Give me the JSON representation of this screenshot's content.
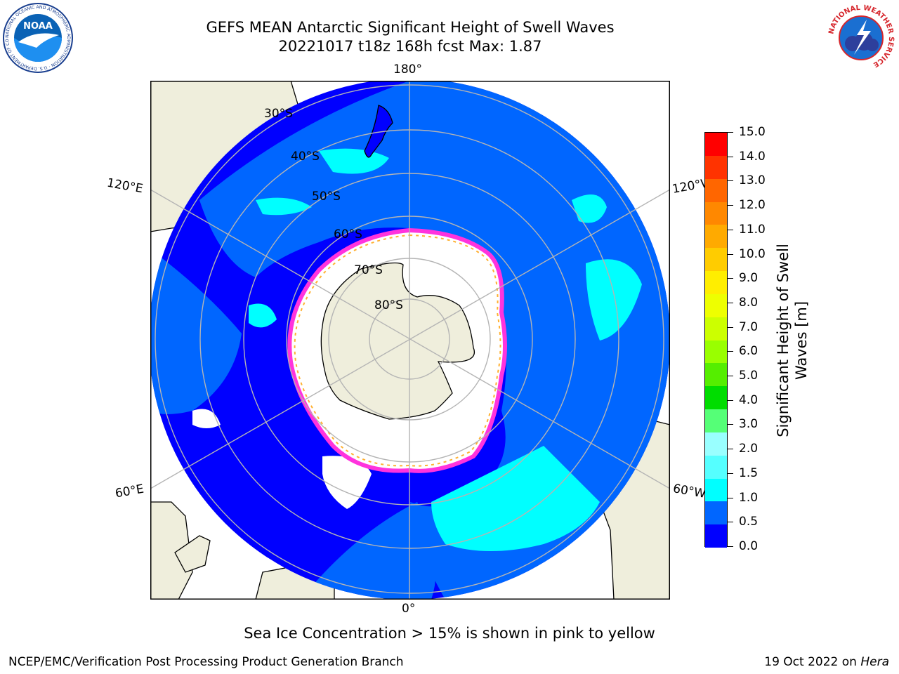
{
  "header": {
    "title_line1": "GEFS MEAN Antarctic Significant Height of Swell Waves",
    "title_line2": "20221017 t18z 168h fcst   Max: 1.87"
  },
  "logos": {
    "noaa_text": "NOAA",
    "noaa_ring_text": "NATIONAL OCEANIC AND ATMOSPHERIC ADMINISTRATION · U.S. DEPARTMENT OF COMMERCE",
    "nws_ring_text": "NATIONAL WEATHER SERVICE"
  },
  "map": {
    "projection": "south-polar-stereographic",
    "longitude_labels": [
      "180°",
      "120°E",
      "120°W",
      "60°E",
      "60°W",
      "0°"
    ],
    "latitude_labels": [
      "30°S",
      "40°S",
      "50°S",
      "60°S",
      "70°S",
      "80°S"
    ],
    "colors": {
      "ocean_dark": "#0000ff",
      "ocean_mid": "#0066ff",
      "ocean_light": "#00ffff",
      "land": "#efeedc",
      "ice": "#ffffff",
      "ice_edge_pink": "#ff33dd",
      "ice_edge_orange": "#ffb030",
      "grid": "#b4b4b4"
    }
  },
  "colorbar": {
    "label_line1": "Significant Height of Swell",
    "label_line2": "Waves [m]",
    "ticks": [
      "15.0",
      "14.0",
      "13.0",
      "12.0",
      "11.0",
      "10.0",
      "9.0",
      "8.0",
      "7.0",
      "6.0",
      "5.0",
      "4.0",
      "3.0",
      "2.0",
      "1.5",
      "1.0",
      "0.5",
      "0.0"
    ],
    "segment_colors_top_to_bottom": [
      "#ff0000",
      "#ff3300",
      "#ff6600",
      "#ff8800",
      "#ffaa00",
      "#ffcc00",
      "#ffee00",
      "#eeff00",
      "#ccff00",
      "#99ff00",
      "#55ee00",
      "#00dd00",
      "#55ff77",
      "#99ffff",
      "#55ffff",
      "#00ffff",
      "#0066ff",
      "#0000ff"
    ]
  },
  "footer": {
    "note": "Sea Ice Concentration > 15% is shown in pink to yellow",
    "left": "NCEP/EMC/Verification Post Processing Product Generation Branch",
    "right_prefix": "19 Oct 2022 on ",
    "right_machine": "Hera"
  }
}
